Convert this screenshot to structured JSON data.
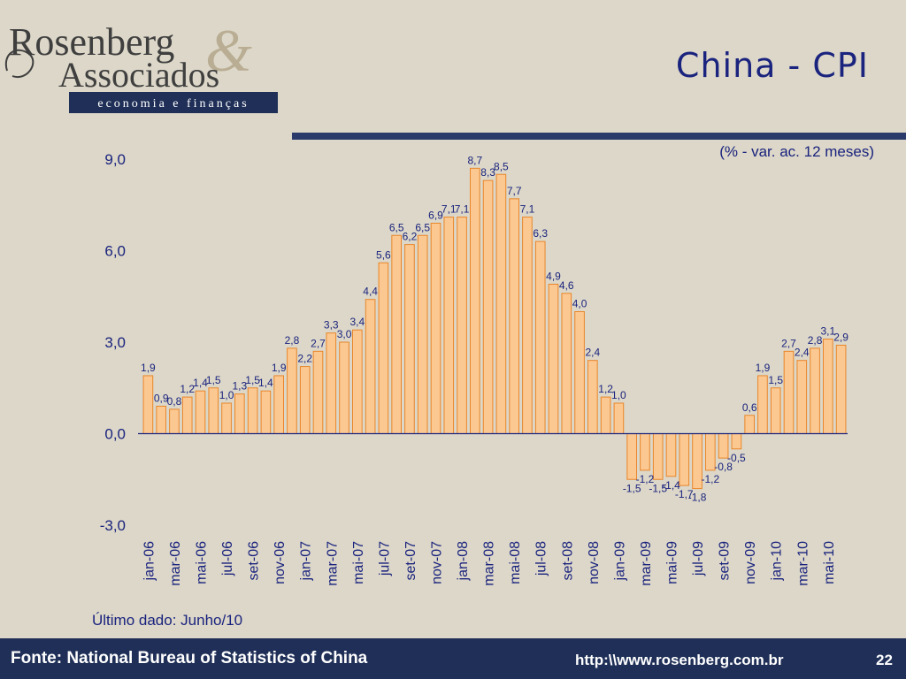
{
  "header": {
    "logo_line1": "Rosenberg",
    "logo_line2": "Associados",
    "logo_amp": "&",
    "logo_tagline": "economia e finanças",
    "title": "China - CPI"
  },
  "chart_data": {
    "type": "bar",
    "subtitle": "(% - var. ac. 12 meses)",
    "ylim": [
      -3.0,
      9.0
    ],
    "yticks": [
      "9,0",
      "6,0",
      "3,0",
      "0,0",
      "-3,0"
    ],
    "ytick_values": [
      9,
      6,
      3,
      0,
      -3
    ],
    "xticks": [
      "jan-06",
      "mar-06",
      "mai-06",
      "jul-06",
      "set-06",
      "nov-06",
      "jan-07",
      "mar-07",
      "mai-07",
      "jul-07",
      "set-07",
      "nov-07",
      "jan-08",
      "mar-08",
      "mai-08",
      "jul-08",
      "set-08",
      "nov-08",
      "jan-09",
      "mar-09",
      "mai-09",
      "jul-09",
      "set-09",
      "nov-09",
      "jan-10",
      "mar-10",
      "mai-10"
    ],
    "values": [
      1.9,
      0.9,
      0.8,
      1.2,
      1.4,
      1.5,
      1.0,
      1.3,
      1.5,
      1.4,
      1.9,
      2.8,
      2.2,
      2.7,
      3.3,
      3.0,
      3.4,
      4.4,
      5.6,
      6.5,
      6.2,
      6.5,
      6.9,
      7.1,
      7.1,
      8.7,
      8.3,
      8.5,
      7.7,
      7.1,
      6.3,
      4.9,
      4.6,
      4.0,
      2.4,
      1.2,
      1.0,
      -1.5,
      -1.2,
      -1.5,
      -1.4,
      -1.7,
      -1.8,
      -1.2,
      -0.8,
      -0.5,
      0.6,
      1.9,
      1.5,
      2.7,
      2.4,
      2.8,
      3.1,
      2.9
    ],
    "value_labels": [
      "1,9",
      "0,9",
      "0,8",
      "1,2",
      "1,4",
      "1,5",
      "1,0",
      "1,3",
      "1,5",
      "1,4",
      "1,9",
      "2,8",
      "2,2",
      "2,7",
      "3,3",
      "3,0",
      "3,4",
      "4,4",
      "5,6",
      "6,5",
      "6,2",
      "6,5",
      "6,9",
      "7,1",
      "7,1",
      "8,7",
      "8,3",
      "8,5",
      "7,7",
      "7,1",
      "6,3",
      "4,9",
      "4,6",
      "4,0",
      "2,4",
      "1,2",
      "1,0",
      "-1,5",
      "-1,2",
      "-1,5",
      "-1,4",
      "-1,7",
      "-1,8",
      "-1,2",
      "-0,8",
      "-0,5",
      "0,6",
      "1,9",
      "1,5",
      "2,7",
      "2,4",
      "2,8",
      "3,1",
      "2,9"
    ],
    "bar_fill": "#fcc891",
    "bar_stroke": "#e8862a"
  },
  "footnote": "Último dado: Junho/10",
  "footer": {
    "source": "Fonte: National Bureau of Statistics of China",
    "url": "http:\\\\www.rosenberg.com.br",
    "page": "22"
  }
}
